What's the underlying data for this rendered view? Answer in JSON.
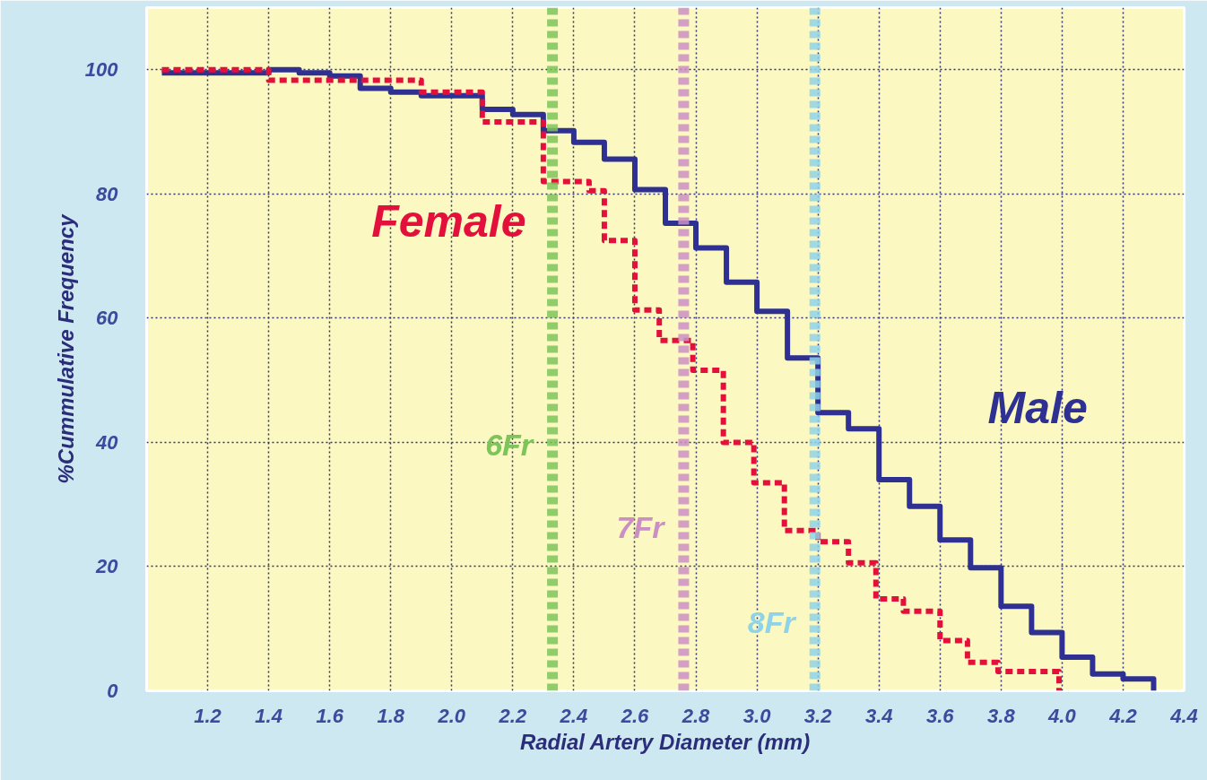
{
  "chart_data": {
    "type": "step",
    "xlabel": "Radial Artery Diameter (mm)",
    "ylabel": "%Cummulative Frequency",
    "xlim": [
      1.0,
      4.4
    ],
    "xticks": [
      {
        "value": 1.2,
        "label": "1.2"
      },
      {
        "value": 1.4,
        "label": "1.4"
      },
      {
        "value": 1.6,
        "label": "1.6"
      },
      {
        "value": 1.8,
        "label": "1.8"
      },
      {
        "value": 2.0,
        "label": "2.0"
      },
      {
        "value": 2.2,
        "label": "2.2"
      },
      {
        "value": 2.4,
        "label": "2.4"
      },
      {
        "value": 2.6,
        "label": "2.6"
      },
      {
        "value": 2.8,
        "label": "2.8"
      },
      {
        "value": 3.0,
        "label": "3.0"
      },
      {
        "value": 3.2,
        "label": "3.2"
      },
      {
        "value": 3.4,
        "label": "3.4"
      },
      {
        "value": 3.6,
        "label": "3.6"
      },
      {
        "value": 3.8,
        "label": "3.8"
      },
      {
        "value": 4.0,
        "label": "4.0"
      },
      {
        "value": 4.2,
        "label": "4.2"
      },
      {
        "value": 4.4,
        "label": "4.4"
      }
    ],
    "ylim": [
      0,
      110
    ],
    "yticks": [
      0,
      20,
      40,
      60,
      80,
      100
    ],
    "grid": true,
    "series": [
      {
        "name": "Male",
        "color": "#2e3192",
        "line_style": "solid",
        "x": [
          1.05,
          1.4,
          1.5,
          1.6,
          1.7,
          1.8,
          1.9,
          2.1,
          2.2,
          2.3,
          2.4,
          2.5,
          2.6,
          2.7,
          2.8,
          2.9,
          3.0,
          3.1,
          3.2,
          3.3,
          3.4,
          3.5,
          3.6,
          3.7,
          3.8,
          3.9,
          4.0,
          4.1,
          4.2,
          4.3
        ],
        "values": [
          99.5,
          100,
          99.5,
          99,
          97,
          96.4,
          95.8,
          93.6,
          92.8,
          90.2,
          88.3,
          85.6,
          80.7,
          75.3,
          71.3,
          65.8,
          61.1,
          53.6,
          44.8,
          42.2,
          34.0,
          29.7,
          24.3,
          19.8,
          13.6,
          9.4,
          5.4,
          2.7,
          1.9,
          0
        ]
      },
      {
        "name": "Female",
        "color": "#e4103c",
        "line_style": "dashed",
        "x": [
          1.05,
          1.4,
          1.9,
          2.1,
          2.3,
          2.45,
          2.5,
          2.6,
          2.68,
          2.79,
          2.89,
          2.99,
          3.09,
          3.2,
          3.3,
          3.39,
          3.48,
          3.6,
          3.69,
          3.79,
          3.99
        ],
        "values": [
          100,
          98.3,
          96.4,
          91.6,
          82.0,
          80.5,
          72.5,
          61.3,
          56.4,
          51.6,
          40.0,
          33.5,
          25.8,
          24.0,
          20.6,
          14.8,
          12.8,
          8.1,
          4.6,
          3.1,
          0
        ]
      }
    ],
    "ref_lines": [
      {
        "axis": "x",
        "value": 2.33,
        "label": "6Fr",
        "color": "#7dc45a",
        "line_style": "dashed"
      },
      {
        "axis": "x",
        "value": 2.76,
        "label": "7Fr",
        "color": "#cc8fc4",
        "line_style": "dashed"
      },
      {
        "axis": "x",
        "value": 3.19,
        "label": "8Fr",
        "color": "#8fd3e8",
        "line_style": "dashed"
      }
    ]
  }
}
